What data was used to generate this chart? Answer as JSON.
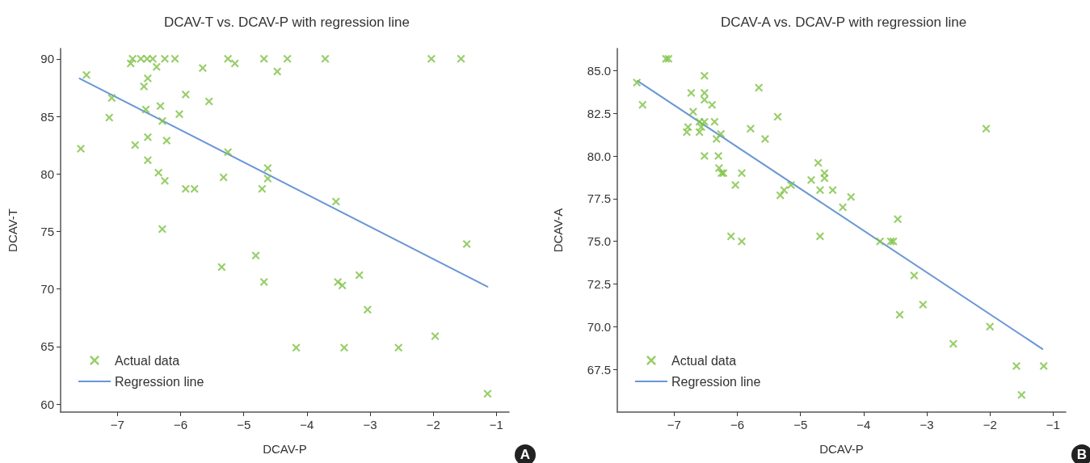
{
  "chart_data": [
    {
      "type": "scatter",
      "title": "DCAV-T vs. DCAV-P with regression line",
      "xlabel": "DCAV-P",
      "ylabel": "DCAV-T",
      "annotations": [
        "A"
      ],
      "xlim": [
        -7.9,
        -0.8
      ],
      "xticks": [
        {
          "value": -7,
          "label": "−7"
        },
        {
          "value": -6,
          "label": "−6"
        },
        {
          "value": -5,
          "label": "−5"
        },
        {
          "value": -4,
          "label": "−4"
        },
        {
          "value": -3,
          "label": "−3"
        },
        {
          "value": -2,
          "label": "−2"
        },
        {
          "value": -1,
          "label": "−1"
        }
      ],
      "ylim": [
        59.3,
        90.9
      ],
      "yticks": [
        60,
        65,
        70,
        75,
        80,
        85,
        90
      ],
      "grid": false,
      "legend": "bottom left",
      "series": [
        {
          "name": "Actual data",
          "color": "#7dc242",
          "marker": "cross",
          "x": [
            -7.58,
            -7.49,
            -7.09,
            -7.13,
            -6.79,
            -6.76,
            -6.63,
            -6.53,
            -6.44,
            -6.38,
            -6.25,
            -6.09,
            -6.58,
            -6.52,
            -6.55,
            -6.32,
            -6.29,
            -6.02,
            -5.92,
            -5.65,
            -5.55,
            -5.25,
            -5.14,
            -4.68,
            -4.47,
            -4.31,
            -6.72,
            -6.52,
            -6.22,
            -6.52,
            -5.25,
            -6.35,
            -6.25,
            -5.92,
            -5.78,
            -5.32,
            -4.62,
            -4.62,
            -4.71,
            -6.29,
            -4.81,
            -5.35,
            -4.68,
            -3.71,
            -2.03,
            -1.56,
            -3.54,
            -1.47,
            -3.51,
            -3.44,
            -3.17,
            -3.04,
            -4.17,
            -3.41,
            -2.55,
            -1.97,
            -1.14
          ],
          "values": [
            82.2,
            88.6,
            86.6,
            84.9,
            89.6,
            90,
            90,
            90,
            90,
            89.3,
            90,
            90,
            87.6,
            88.3,
            85.6,
            85.9,
            84.6,
            85.2,
            86.9,
            89.2,
            86.3,
            90,
            89.6,
            90,
            88.9,
            90,
            82.5,
            83.2,
            82.9,
            81.2,
            81.9,
            80.1,
            79.4,
            78.7,
            78.7,
            79.7,
            80.5,
            79.6,
            78.7,
            75.2,
            72.9,
            71.9,
            70.6,
            90,
            90,
            90,
            77.6,
            73.9,
            70.6,
            70.3,
            71.2,
            68.2,
            64.9,
            64.9,
            64.9,
            65.9,
            60.9
          ]
        },
        {
          "name": "Regression line",
          "type": "line",
          "color": "#6a96d4",
          "marker": "none",
          "line_style": "solid",
          "x": [
            -7.6,
            -1.14
          ],
          "values": [
            88.3,
            70.2
          ]
        }
      ]
    },
    {
      "type": "scatter",
      "title": "DCAV-A vs. DCAV-P with regression line",
      "xlabel": "DCAV-P",
      "ylabel": "DCAV-A",
      "annotations": [
        "B"
      ],
      "xlim": [
        -7.9,
        -0.8
      ],
      "xticks": [
        {
          "value": -7,
          "label": "−7"
        },
        {
          "value": -6,
          "label": "−6"
        },
        {
          "value": -5,
          "label": "−5"
        },
        {
          "value": -4,
          "label": "−4"
        },
        {
          "value": -3,
          "label": "−3"
        },
        {
          "value": -2,
          "label": "−2"
        },
        {
          "value": -1,
          "label": "−1"
        }
      ],
      "ylim": [
        65,
        86.3
      ],
      "yticks": [
        {
          "value": 67.5,
          "label": "67.5"
        },
        {
          "value": 70,
          "label": "70.0"
        },
        {
          "value": 72.5,
          "label": "72.5"
        },
        {
          "value": 75,
          "label": "75.0"
        },
        {
          "value": 77.5,
          "label": "77.5"
        },
        {
          "value": 80,
          "label": "80.0"
        },
        {
          "value": 82.5,
          "label": "82.5"
        },
        {
          "value": 85,
          "label": "85.0"
        }
      ],
      "grid": false,
      "legend": "bottom left",
      "series": [
        {
          "name": "Actual data",
          "color": "#7dc242",
          "marker": "cross",
          "x": [
            -7.59,
            -7.5,
            -7.13,
            -7.09,
            -6.52,
            -6.52,
            -6.52,
            -6.73,
            -6.7,
            -6.4,
            -6.78,
            -6.8,
            -6.6,
            -6.57,
            -6.52,
            -6.6,
            -6.36,
            -6.33,
            -6.26,
            -6.52,
            -6.3,
            -6.29,
            -6.25,
            -6.22,
            -6.03,
            -5.93,
            -6.1,
            -5.93,
            -5.79,
            -5.66,
            -5.56,
            -5.36,
            -5.32,
            -5.26,
            -5.15,
            -4.83,
            -4.72,
            -4.62,
            -4.62,
            -4.69,
            -4.69,
            -4.49,
            -4.2,
            -4.33,
            -3.46,
            -3.74,
            -3.57,
            -3.53,
            -3.2,
            -3.06,
            -3.43,
            -2.06,
            -2.0,
            -2.58,
            -1.58,
            -1.15,
            -1.5
          ],
          "values": [
            84.3,
            83.0,
            85.7,
            85.7,
            84.7,
            83.7,
            83.3,
            83.7,
            82.6,
            83.0,
            81.7,
            81.4,
            81.4,
            81.7,
            82.0,
            82.0,
            82.0,
            81.0,
            81.3,
            80.0,
            80.0,
            79.3,
            79.0,
            79.0,
            78.3,
            79.0,
            75.3,
            75.0,
            81.6,
            84.0,
            81.0,
            82.3,
            77.7,
            78.0,
            78.3,
            78.6,
            79.6,
            79.0,
            78.7,
            78.0,
            75.3,
            78.0,
            77.6,
            77.0,
            76.3,
            75.0,
            75.0,
            75.0,
            73.0,
            71.3,
            70.7,
            81.6,
            70.0,
            69.0,
            67.7,
            67.7,
            66.0
          ]
        },
        {
          "name": "Regression line",
          "type": "line",
          "color": "#6a96d4",
          "marker": "none",
          "line_style": "solid",
          "x": [
            -7.58,
            -1.17
          ],
          "values": [
            84.4,
            68.7
          ]
        }
      ]
    }
  ]
}
